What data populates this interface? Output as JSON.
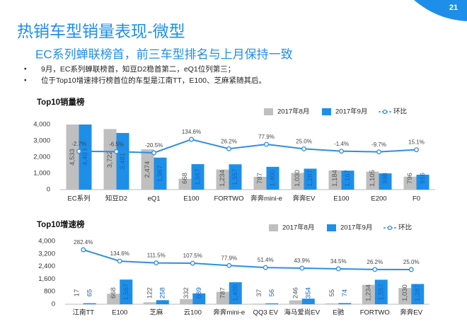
{
  "slide": {
    "number": "21",
    "title": "热销车型销量表现-微型",
    "subtitle": "EC系列蝉联榜首，前三车型排名与上月保持一致",
    "bullets": [
      "9月，EC系列蝉联榜首，知豆D2稳首第二，eQ1位列第三；",
      "位于Top10增速排行榜首位的车型是江南TT，E100、芝麻紧随其后。"
    ]
  },
  "chart_data": [
    {
      "type": "bar",
      "title": "Top10销量榜",
      "categories": [
        "EC系列",
        "知豆D2",
        "eQ1",
        "E100",
        "FORTWO",
        "奔奔mini-e",
        "奔奔EV",
        "E100",
        "E200",
        "F0"
      ],
      "series": [
        {
          "name": "2017年8月",
          "color": "#bfbfbf",
          "values": [
            4533,
            3722,
            2474,
            668,
            1234,
            787,
            1030,
            1184,
            1105,
            796
          ],
          "value_labels": [
            "4,533",
            "3,722",
            "2,474",
            "668",
            "1,234",
            "787",
            "1,030",
            "1,184",
            "1,105",
            "796"
          ]
        },
        {
          "name": "2017年9月",
          "color": "#1e8fe8",
          "values": [
            4409,
            3481,
            1967,
            1567,
            1557,
            1400,
            1287,
            1167,
            998,
            916
          ],
          "value_labels": [
            "4,409",
            "3,481",
            "1,967",
            "1,567",
            "1,557",
            "1,400",
            "1,287",
            "1,167",
            "998",
            "916"
          ]
        },
        {
          "name": "环比",
          "type": "line",
          "axis": "y2",
          "color": "#2e8fe0",
          "values": [
            -2.7,
            -6.5,
            -20.5,
            134.6,
            26.2,
            77.9,
            25.0,
            -1.4,
            -9.7,
            15.1
          ],
          "value_labels": [
            "-2.7%",
            "-6.5%",
            "-20.5%",
            "134.6%",
            "26.2%",
            "77.9%",
            "25.0%",
            "-1.4%",
            "-9.7%",
            "15.1%"
          ]
        }
      ],
      "ylim": [
        0,
        4000
      ],
      "yticks": [
        0,
        {
          "value": 1000,
          "label": "1,000"
        },
        {
          "value": 2000,
          "label": "2,000"
        },
        {
          "value": 3000,
          "label": "3,000"
        },
        {
          "value": 4000,
          "label": "4,000"
        }
      ],
      "grid": false,
      "legend": "top-right"
    },
    {
      "type": "bar",
      "title": "Top10增速榜",
      "categories": [
        "江南TT",
        "E100",
        "芝麻",
        "云100",
        "奔奔mini-e",
        "QQ3 EV",
        "海马爱尚EV",
        "E驰",
        "FORTWO",
        "奔奔EV"
      ],
      "series": [
        {
          "name": "2017年8月",
          "color": "#bfbfbf",
          "values": [
            17,
            668,
            122,
            332,
            787,
            37,
            246,
            55,
            1234,
            1030
          ],
          "value_labels": [
            "17",
            "668",
            "122",
            "332",
            "787",
            "37",
            "246",
            "55",
            "1,234",
            "1,030"
          ]
        },
        {
          "name": "2017年9月",
          "color": "#1e8fe8",
          "values": [
            65,
            1567,
            258,
            689,
            1400,
            56,
            354,
            74,
            1557,
            1287
          ],
          "value_labels": [
            "65",
            "1,567",
            "258",
            "689",
            "1,400",
            "56",
            "354",
            "74",
            "1,557",
            "1,287"
          ]
        },
        {
          "name": "环比",
          "type": "line",
          "axis": "y2",
          "color": "#2e8fe0",
          "values": [
            282.4,
            134.6,
            111.5,
            107.5,
            77.9,
            51.4,
            43.9,
            34.5,
            26.2,
            25.0
          ],
          "value_labels": [
            "282.4%",
            "134.6%",
            "111.5%",
            "107.5%",
            "77.9%",
            "51.4%",
            "43.9%",
            "34.5%",
            "26.2%",
            "25.0%"
          ]
        }
      ],
      "ylim": [
        0,
        4000
      ],
      "yticks": [
        0,
        800,
        {
          "value": 1600,
          "label": "1,600"
        },
        {
          "value": 2400,
          "label": "2,400"
        },
        {
          "value": 3200,
          "label": "3,200"
        },
        {
          "value": 4000,
          "label": "4,000"
        }
      ],
      "grid": false,
      "legend": "top-right"
    }
  ]
}
